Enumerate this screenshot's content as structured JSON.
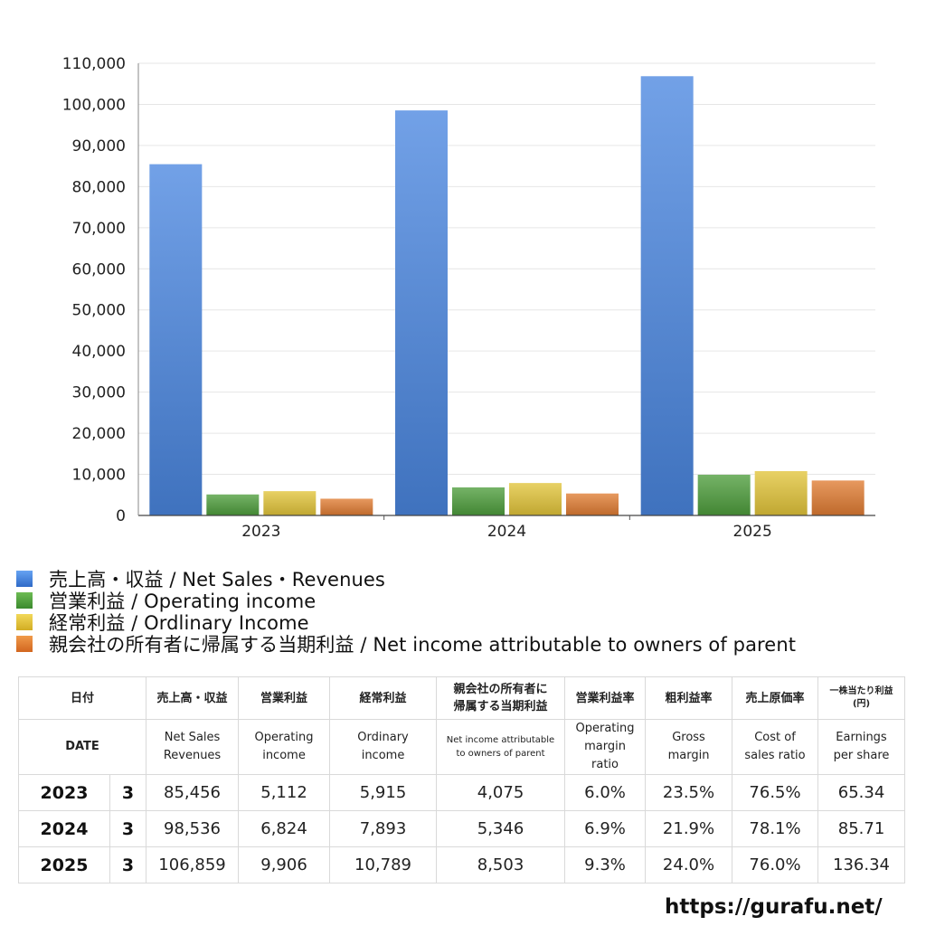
{
  "chart_data": {
    "type": "bar",
    "categories": [
      "2023",
      "2024",
      "2025"
    ],
    "ylim": [
      0,
      110000
    ],
    "yticks": [
      0,
      10000,
      20000,
      30000,
      40000,
      50000,
      60000,
      70000,
      80000,
      90000,
      100000,
      110000
    ],
    "ytick_labels": [
      "0",
      "10,000",
      "20,000",
      "30,000",
      "40,000",
      "50,000",
      "60,000",
      "70,000",
      "80,000",
      "90,000",
      "100,000",
      "110,000"
    ],
    "grid": true,
    "series": [
      {
        "name": "売上高・収益 / Net Sales・Revenues",
        "values": [
          85456,
          98536,
          106859
        ],
        "color": "#4a86e0"
      },
      {
        "name": "営業利益 / Operating income",
        "values": [
          5112,
          6824,
          9906
        ],
        "color": "#4e9e3c"
      },
      {
        "name": "経常利益 / Ordlinary Income",
        "values": [
          5915,
          7893,
          10789
        ],
        "color": "#e2c43a"
      },
      {
        "name": "親会社の所有者に帰属する当期利益 / Net income attributable to owners of parent",
        "values": [
          4075,
          5346,
          8503
        ],
        "color": "#e07c32"
      }
    ]
  },
  "legend": [
    {
      "label": "売上高・収益 / Net Sales・Revenues",
      "color": "#4a86e0"
    },
    {
      "label": "営業利益 / Operating income",
      "color": "#4e9e3c"
    },
    {
      "label": "経常利益 / Ordlinary Income",
      "color": "#e2c43a"
    },
    {
      "label": "親会社の所有者に帰属する当期利益 / Net income attributable to owners of parent",
      "color": "#e07c32"
    }
  ],
  "table": {
    "header_jp": {
      "date": "日付",
      "net_sales": "売上高・収益",
      "operating_income": "営業利益",
      "ordinary_income": "経常利益",
      "net_income_l1": "親会社の所有者に",
      "net_income_l2": "帰属する当期利益",
      "op_margin": "営業利益率",
      "gross_margin": "粗利益率",
      "cost_ratio": "売上原価率",
      "eps_l1": "一株当たり利益",
      "eps_l2": "(円)"
    },
    "header_en": {
      "date": "DATE",
      "net_sales_l1": "Net Sales",
      "net_sales_l2": "Revenues",
      "operating_income_l1": "Operating",
      "operating_income_l2": "income",
      "ordinary_income_l1": "Ordinary",
      "ordinary_income_l2": "income",
      "net_income_l1": "Net income attributable",
      "net_income_l2": "to owners of parent",
      "op_margin_l1": "Operating",
      "op_margin_l2": "margin",
      "op_margin_l3": "ratio",
      "gross_margin_l1": "Gross",
      "gross_margin_l2": "margin",
      "cost_ratio_l1": "Cost of",
      "cost_ratio_l2": "sales ratio",
      "eps_l1": "Earnings",
      "eps_l2": "per share"
    },
    "rows": [
      {
        "year": "2023",
        "month": "3",
        "net_sales": "85,456",
        "operating_income": "5,112",
        "ordinary_income": "5,915",
        "net_income": "4,075",
        "op_margin": "6.0%",
        "gross_margin": "23.5%",
        "cost_ratio": "76.5%",
        "eps": "65.34"
      },
      {
        "year": "2024",
        "month": "3",
        "net_sales": "98,536",
        "operating_income": "6,824",
        "ordinary_income": "7,893",
        "net_income": "5,346",
        "op_margin": "6.9%",
        "gross_margin": "21.9%",
        "cost_ratio": "78.1%",
        "eps": "85.71"
      },
      {
        "year": "2025",
        "month": "3",
        "net_sales": "106,859",
        "operating_income": "9,906",
        "ordinary_income": "10,789",
        "net_income": "8,503",
        "op_margin": "9.3%",
        "gross_margin": "24.0%",
        "cost_ratio": "76.0%",
        "eps": "136.34"
      }
    ]
  },
  "site_url": "https://gurafu.net/"
}
